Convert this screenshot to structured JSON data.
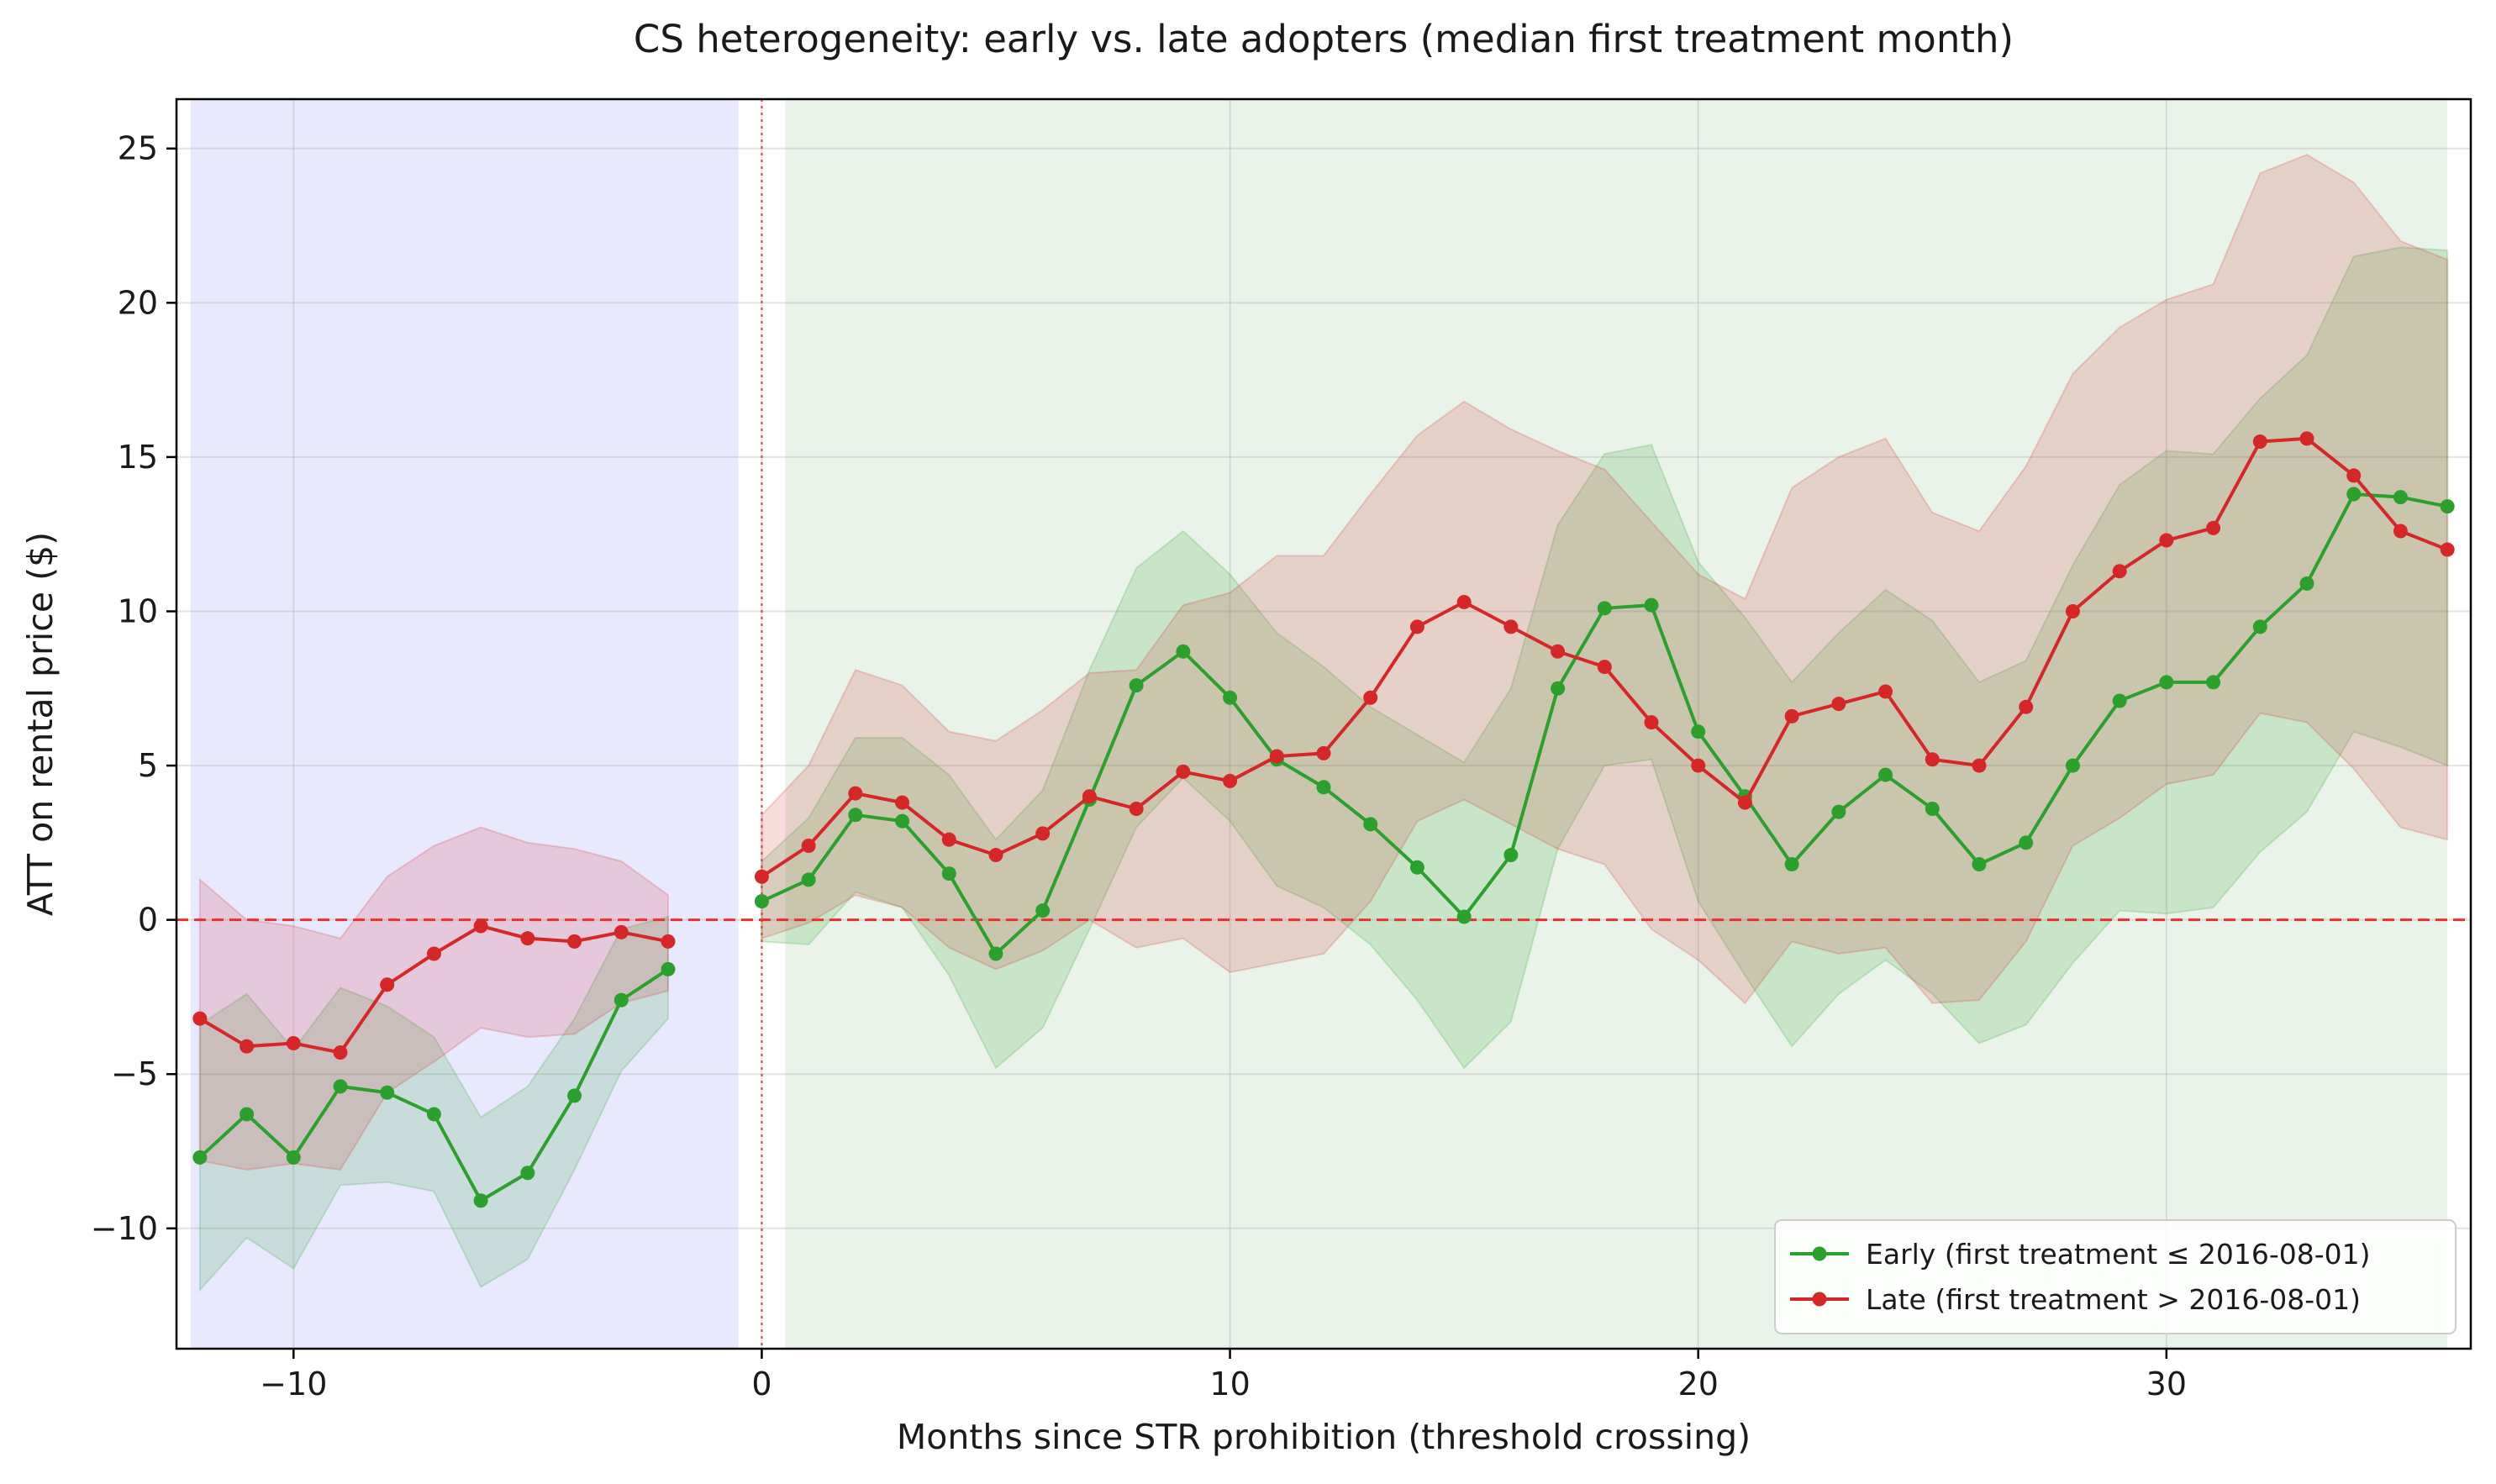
{
  "chart_data": {
    "type": "line",
    "title": "CS heterogeneity: early vs. late adopters (median first treatment month)",
    "xlabel": "Months since STR prohibition (threshold crossing)",
    "ylabel": "ATT on rental price ($)",
    "xlim": [
      -12.5,
      36.5
    ],
    "ylim": [
      -13.9,
      26.6
    ],
    "x_ticks": [
      -10,
      0,
      10,
      20,
      30
    ],
    "y_ticks": [
      -10,
      -5,
      0,
      5,
      10,
      15,
      20,
      25
    ],
    "x_tick_labels": [
      "−10",
      "0",
      "10",
      "20",
      "30"
    ],
    "y_tick_labels": [
      "−10",
      "−5",
      "0",
      "5",
      "10",
      "15",
      "20",
      "25"
    ],
    "grid": true,
    "legend_position": "lower-right",
    "shaded_regions": [
      {
        "x": [
          -12.2,
          -0.5
        ],
        "color": "#e8e8ff"
      },
      {
        "x": [
          0.5,
          36.0
        ],
        "color": "#e9f3e9"
      }
    ],
    "reference_lines": [
      {
        "axis": "y",
        "value": 0,
        "style": "dashed",
        "color": "#e8312f"
      },
      {
        "axis": "x",
        "value": 0,
        "style": "dotted",
        "color": "#e8312f"
      }
    ],
    "x": [
      -12,
      -11,
      -10,
      -9,
      -8,
      -7,
      -6,
      -5,
      -4,
      -3,
      -2,
      -1,
      0,
      1,
      2,
      3,
      4,
      5,
      6,
      7,
      8,
      9,
      10,
      11,
      12,
      13,
      14,
      15,
      16,
      17,
      18,
      19,
      20,
      21,
      22,
      23,
      24,
      25,
      26,
      27,
      28,
      29,
      30,
      31,
      32,
      33,
      34,
      35,
      36
    ],
    "series": [
      {
        "name": "Early (first treatment ≤ 2016-08-01)",
        "color": "#2ca02c",
        "values": [
          -7.7,
          -6.3,
          -7.7,
          -5.4,
          -5.6,
          -6.3,
          -9.1,
          -8.2,
          -5.7,
          -2.6,
          -1.6,
          null,
          0.6,
          1.3,
          3.4,
          3.2,
          1.5,
          -1.1,
          0.3,
          3.9,
          7.6,
          8.7,
          7.2,
          5.2,
          4.3,
          3.1,
          1.7,
          0.1,
          2.1,
          7.5,
          10.1,
          10.2,
          6.1,
          4.0,
          1.8,
          3.5,
          4.7,
          3.6,
          1.8,
          2.5,
          5.0,
          7.1,
          7.7,
          7.7,
          9.5,
          10.9,
          13.8,
          13.7,
          13.4
        ],
        "lower": [
          -12.0,
          -10.3,
          -11.3,
          -8.6,
          -8.5,
          -8.8,
          -11.9,
          -11.0,
          -8.1,
          -4.9,
          -3.2,
          null,
          -0.7,
          -0.8,
          0.9,
          0.4,
          -1.8,
          -4.8,
          -3.5,
          -0.3,
          3.0,
          4.6,
          3.2,
          1.1,
          0.4,
          -0.8,
          -2.6,
          -4.8,
          -3.3,
          2.3,
          5.0,
          5.2,
          0.6,
          -1.8,
          -4.1,
          -2.4,
          -1.3,
          -2.4,
          -4.0,
          -3.4,
          -1.4,
          0.3,
          0.2,
          0.4,
          2.2,
          3.5,
          6.1,
          5.6,
          5.0
        ],
        "upper": [
          -3.4,
          -2.4,
          -4.2,
          -2.2,
          -2.8,
          -3.8,
          -6.4,
          -5.4,
          -3.2,
          -0.3,
          0.1,
          null,
          1.9,
          3.3,
          5.9,
          5.9,
          4.7,
          2.6,
          4.2,
          8.1,
          11.4,
          12.6,
          11.2,
          9.3,
          8.2,
          6.9,
          6.0,
          5.1,
          7.5,
          12.8,
          15.1,
          15.4,
          11.6,
          9.8,
          7.7,
          9.3,
          10.7,
          9.7,
          7.7,
          8.4,
          11.5,
          14.1,
          15.2,
          15.1,
          16.9,
          18.3,
          21.5,
          21.8,
          21.7
        ]
      },
      {
        "name": "Late (first treatment > 2016-08-01)",
        "color": "#d62728",
        "values": [
          -3.2,
          -4.1,
          -4.0,
          -4.3,
          -2.1,
          -1.1,
          -0.2,
          -0.6,
          -0.7,
          -0.4,
          -0.7,
          null,
          1.4,
          2.4,
          4.1,
          3.8,
          2.6,
          2.1,
          2.8,
          4.0,
          3.6,
          4.8,
          4.5,
          5.3,
          5.4,
          7.2,
          9.5,
          10.3,
          9.5,
          8.7,
          8.2,
          6.4,
          5.0,
          3.8,
          6.6,
          7.0,
          7.4,
          5.2,
          5.0,
          6.9,
          10.0,
          11.3,
          12.3,
          12.7,
          15.5,
          15.6,
          14.4,
          12.6,
          12.0
        ],
        "lower": [
          -7.8,
          -8.1,
          -7.9,
          -8.1,
          -5.6,
          -4.6,
          -3.5,
          -3.8,
          -3.7,
          -2.7,
          -2.3,
          null,
          -0.6,
          -0.1,
          0.8,
          0.4,
          -0.9,
          -1.6,
          -1.0,
          0.0,
          -0.9,
          -0.6,
          -1.7,
          -1.4,
          -1.1,
          0.6,
          3.2,
          3.9,
          3.1,
          2.3,
          1.8,
          -0.3,
          -1.3,
          -2.7,
          -0.7,
          -1.1,
          -0.9,
          -2.7,
          -2.6,
          -0.7,
          2.4,
          3.3,
          4.4,
          4.7,
          6.7,
          6.4,
          4.9,
          3.0,
          2.6
        ],
        "upper": [
          1.3,
          0.0,
          -0.2,
          -0.6,
          1.4,
          2.4,
          3.0,
          2.5,
          2.3,
          1.9,
          0.8,
          null,
          3.4,
          5.0,
          8.1,
          7.6,
          6.1,
          5.8,
          6.8,
          8.0,
          8.1,
          10.2,
          10.6,
          11.8,
          11.8,
          13.8,
          15.7,
          16.8,
          15.9,
          15.2,
          14.6,
          12.9,
          11.2,
          10.4,
          14.0,
          15.0,
          15.6,
          13.2,
          12.6,
          14.7,
          17.7,
          19.2,
          20.1,
          20.6,
          24.2,
          24.8,
          23.9,
          22.0,
          21.4
        ]
      }
    ]
  }
}
